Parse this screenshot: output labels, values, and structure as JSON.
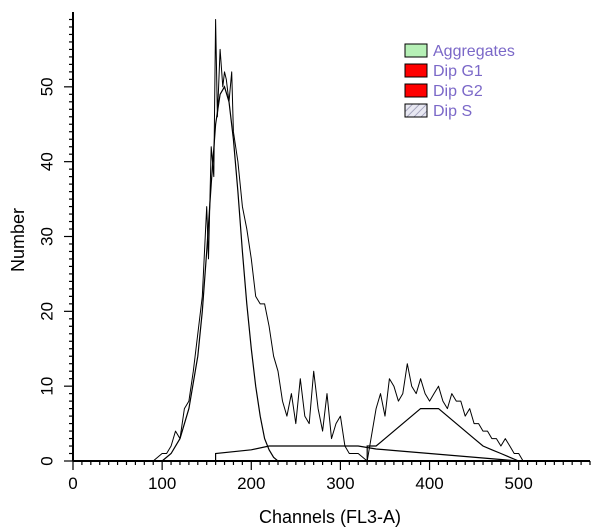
{
  "chart_data": {
    "type": "histogram",
    "xlabel": "Channels (FL3-A)",
    "ylabel": "Number",
    "xlim": [
      0,
      580
    ],
    "ylim": [
      0,
      60
    ],
    "x_ticks": [
      0,
      100,
      200,
      300,
      400,
      500
    ],
    "y_ticks": [
      0,
      10,
      20,
      30,
      40,
      50
    ],
    "x_minor_step": 10,
    "y_minor_step": 1,
    "legend_position": "top-right",
    "legend_text_color": "#7b68c8",
    "series": [
      {
        "name": "Aggregates",
        "color": "#b6f0b6",
        "kind": "fill",
        "x": [],
        "y": []
      },
      {
        "name": "Dip G1",
        "color": "#ff0000",
        "kind": "fill",
        "x": [
          100,
          110,
          120,
          130,
          140,
          145,
          150,
          155,
          160,
          165,
          170,
          175,
          180,
          185,
          190,
          195,
          200,
          205,
          210,
          215,
          220,
          225,
          230
        ],
        "y": [
          0,
          1,
          3,
          7,
          14,
          20,
          28,
          37,
          45,
          49,
          50,
          48,
          43,
          36,
          28,
          21,
          15,
          10,
          6,
          3,
          1.5,
          0.5,
          0
        ]
      },
      {
        "name": "Dip G2",
        "color": "#ff0000",
        "kind": "fill",
        "x": [
          330,
          340,
          350,
          360,
          370,
          380,
          390,
          400,
          410,
          420,
          430,
          440,
          450,
          460,
          470,
          480,
          490,
          500
        ],
        "y": [
          2,
          2,
          3,
          4,
          5,
          6,
          7,
          7,
          7,
          6,
          5,
          4,
          3,
          2,
          1.5,
          1,
          0.5,
          0
        ]
      },
      {
        "name": "Dip S",
        "color": "#e2e2ee",
        "kind": "hatch",
        "x": [
          160,
          200,
          220,
          240,
          280,
          320,
          340,
          360,
          380,
          400,
          420,
          440,
          460,
          480,
          500
        ],
        "y": [
          1,
          1.5,
          2,
          2,
          2,
          2,
          1.6,
          1.4,
          1.2,
          1,
          0.8,
          0.6,
          0.4,
          0.2,
          0
        ]
      }
    ],
    "raw_histogram": {
      "x": [
        90,
        100,
        105,
        110,
        115,
        120,
        125,
        130,
        135,
        140,
        145,
        150,
        152,
        155,
        158,
        160,
        162,
        165,
        168,
        170,
        172,
        175,
        178,
        180,
        185,
        190,
        195,
        200,
        205,
        210,
        215,
        220,
        225,
        230,
        235,
        240,
        245,
        250,
        255,
        260,
        265,
        270,
        275,
        280,
        285,
        290,
        295,
        300,
        305,
        310,
        320,
        330,
        340,
        345,
        350,
        355,
        360,
        365,
        370,
        375,
        380,
        385,
        390,
        395,
        400,
        405,
        410,
        415,
        420,
        425,
        430,
        435,
        440,
        445,
        450,
        455,
        460,
        465,
        470,
        475,
        480,
        485,
        490,
        495,
        500,
        505
      ],
      "y": [
        0,
        1,
        1,
        2,
        4,
        3,
        7,
        8,
        12,
        17,
        22,
        34,
        27,
        42,
        38,
        59,
        46,
        55,
        50,
        52,
        51,
        48,
        52,
        44,
        40,
        34,
        31,
        27,
        22,
        21,
        21,
        18,
        14,
        12,
        8,
        6,
        9,
        5,
        11,
        6,
        5,
        12,
        7,
        4,
        9,
        3,
        5,
        6,
        2,
        1,
        1,
        0,
        7,
        9,
        6,
        11,
        10,
        8,
        9,
        13,
        10,
        9,
        11,
        9,
        8,
        9,
        10,
        8,
        7,
        9,
        8,
        8,
        6,
        7,
        5,
        5,
        4,
        4,
        3,
        3,
        2,
        3,
        2,
        1,
        1,
        0
      ]
    }
  }
}
